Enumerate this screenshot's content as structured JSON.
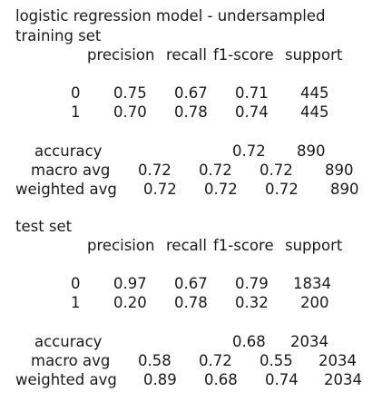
{
  "title": "logistic regression model - undersampled",
  "sections": [
    {
      "label": "training set",
      "headers": {
        "precision": "precision",
        "recall": "recall",
        "f1": "f1-score",
        "support": "support"
      },
      "rows": [
        {
          "label": "0",
          "precision": "0.75",
          "recall": "0.67",
          "f1": "0.71",
          "support": "445"
        },
        {
          "label": "1",
          "precision": "0.70",
          "recall": "0.78",
          "f1": "0.74",
          "support": "445"
        }
      ],
      "accuracy": {
        "label": "accuracy",
        "value": "0.72",
        "support": "890"
      },
      "macro_avg": {
        "label": "macro avg",
        "precision": "0.72",
        "recall": "0.72",
        "f1": "0.72",
        "support": "890"
      },
      "weighted_avg": {
        "label": "weighted avg",
        "precision": "0.72",
        "recall": "0.72",
        "f1": "0.72",
        "support": "890"
      }
    },
    {
      "label": "test set",
      "headers": {
        "precision": "precision",
        "recall": "recall",
        "f1": "f1-score",
        "support": "support"
      },
      "rows": [
        {
          "label": "0",
          "precision": "0.97",
          "recall": "0.67",
          "f1": "0.79",
          "support": "1834"
        },
        {
          "label": "1",
          "precision": "0.20",
          "recall": "0.78",
          "f1": "0.32",
          "support": "200"
        }
      ],
      "accuracy": {
        "label": "accuracy",
        "value": "0.68",
        "support": "2034"
      },
      "macro_avg": {
        "label": "macro avg",
        "precision": "0.58",
        "recall": "0.72",
        "f1": "0.55",
        "support": "2034"
      },
      "weighted_avg": {
        "label": "weighted avg",
        "precision": "0.89",
        "recall": "0.68",
        "f1": "0.74",
        "support": "2034"
      }
    }
  ]
}
